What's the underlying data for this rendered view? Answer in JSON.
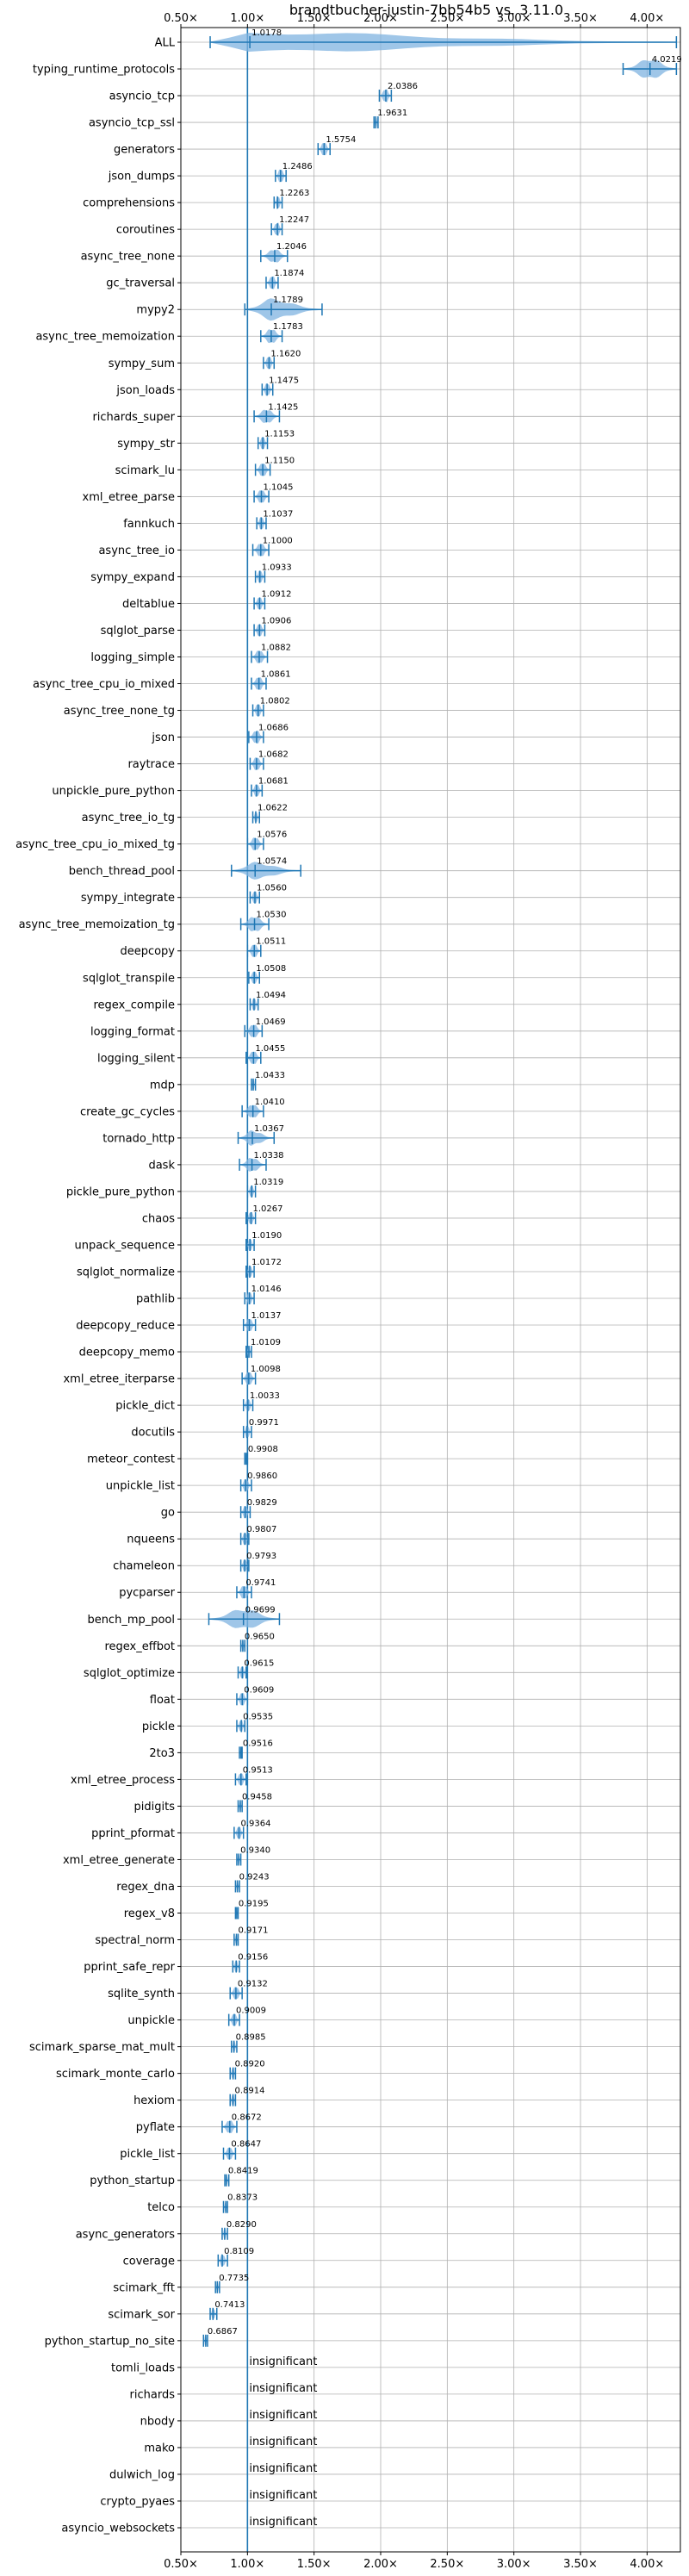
{
  "chart_data": {
    "type": "violin",
    "title": "brandtbucher-justin-7bb54b5 vs. 3.11.0",
    "xlim": [
      0.5,
      4.25
    ],
    "xticks": [
      "0.50×",
      "1.00×",
      "1.50×",
      "2.00×",
      "2.50×",
      "3.00×",
      "3.50×",
      "4.00×"
    ],
    "xtick_values": [
      0.5,
      1.0,
      1.5,
      2.0,
      2.5,
      3.0,
      3.5,
      4.0
    ],
    "reference_line": 1.0,
    "grid": true,
    "colors": {
      "violin": "#7fb3e0",
      "line": "#1f77b4",
      "grid": "#b0b0b0"
    },
    "insignificant_label": "insignificant",
    "benchmarks": [
      {
        "name": "ALL",
        "value": 1.0178,
        "label": "1.0178",
        "lo": 0.72,
        "hi": 4.22,
        "w": 1.0
      },
      {
        "name": "typing_runtime_protocols",
        "value": 4.0219,
        "label": "4.0219",
        "lo": 3.82,
        "hi": 4.22,
        "w": 1.0
      },
      {
        "name": "asyncio_tcp",
        "value": 2.0386,
        "label": "2.0386",
        "lo": 1.99,
        "hi": 2.08,
        "w": 0.55
      },
      {
        "name": "asyncio_tcp_ssl",
        "value": 1.9631,
        "label": "1.9631",
        "lo": 1.95,
        "hi": 1.98,
        "w": 0.45
      },
      {
        "name": "generators",
        "value": 1.5754,
        "label": "1.5754",
        "lo": 1.53,
        "hi": 1.62,
        "w": 0.55
      },
      {
        "name": "json_dumps",
        "value": 1.2486,
        "label": "1.2486",
        "lo": 1.21,
        "hi": 1.29,
        "w": 0.55
      },
      {
        "name": "comprehensions",
        "value": 1.2263,
        "label": "1.2263",
        "lo": 1.2,
        "hi": 1.26,
        "w": 0.55
      },
      {
        "name": "coroutines",
        "value": 1.2247,
        "label": "1.2247",
        "lo": 1.18,
        "hi": 1.26,
        "w": 0.55
      },
      {
        "name": "async_tree_none",
        "value": 1.2046,
        "label": "1.2046",
        "lo": 1.1,
        "hi": 1.3,
        "w": 0.55
      },
      {
        "name": "gc_traversal",
        "value": 1.1874,
        "label": "1.1874",
        "lo": 1.14,
        "hi": 1.23,
        "w": 0.55
      },
      {
        "name": "mypy2",
        "value": 1.1789,
        "label": "1.1789",
        "lo": 0.98,
        "hi": 1.56,
        "w": 1.0
      },
      {
        "name": "async_tree_memoization",
        "value": 1.1783,
        "label": "1.1783",
        "lo": 1.1,
        "hi": 1.26,
        "w": 0.65
      },
      {
        "name": "sympy_sum",
        "value": 1.162,
        "label": "1.1620",
        "lo": 1.12,
        "hi": 1.2,
        "w": 0.5
      },
      {
        "name": "json_loads",
        "value": 1.1475,
        "label": "1.1475",
        "lo": 1.11,
        "hi": 1.19,
        "w": 0.5
      },
      {
        "name": "richards_super",
        "value": 1.1425,
        "label": "1.1425",
        "lo": 1.05,
        "hi": 1.24,
        "w": 0.6
      },
      {
        "name": "sympy_str",
        "value": 1.1153,
        "label": "1.1153",
        "lo": 1.08,
        "hi": 1.15,
        "w": 0.5
      },
      {
        "name": "scimark_lu",
        "value": 1.115,
        "label": "1.1150",
        "lo": 1.06,
        "hi": 1.17,
        "w": 0.55
      },
      {
        "name": "xml_etree_parse",
        "value": 1.1045,
        "label": "1.1045",
        "lo": 1.05,
        "hi": 1.16,
        "w": 0.55
      },
      {
        "name": "fannkuch",
        "value": 1.1037,
        "label": "1.1037",
        "lo": 1.07,
        "hi": 1.14,
        "w": 0.5
      },
      {
        "name": "async_tree_io",
        "value": 1.1,
        "label": "1.1000",
        "lo": 1.04,
        "hi": 1.16,
        "w": 0.55
      },
      {
        "name": "sympy_expand",
        "value": 1.0933,
        "label": "1.0933",
        "lo": 1.06,
        "hi": 1.13,
        "w": 0.5
      },
      {
        "name": "deltablue",
        "value": 1.0912,
        "label": "1.0912",
        "lo": 1.05,
        "hi": 1.13,
        "w": 0.5
      },
      {
        "name": "sqlglot_parse",
        "value": 1.0906,
        "label": "1.0906",
        "lo": 1.05,
        "hi": 1.13,
        "w": 0.5
      },
      {
        "name": "logging_simple",
        "value": 1.0882,
        "label": "1.0882",
        "lo": 1.03,
        "hi": 1.15,
        "w": 0.55
      },
      {
        "name": "async_tree_cpu_io_mixed",
        "value": 1.0861,
        "label": "1.0861",
        "lo": 1.03,
        "hi": 1.14,
        "w": 0.55
      },
      {
        "name": "async_tree_none_tg",
        "value": 1.0802,
        "label": "1.0802",
        "lo": 1.04,
        "hi": 1.12,
        "w": 0.5
      },
      {
        "name": "json",
        "value": 1.0686,
        "label": "1.0686",
        "lo": 1.01,
        "hi": 1.12,
        "w": 0.55
      },
      {
        "name": "raytrace",
        "value": 1.0682,
        "label": "1.0682",
        "lo": 1.02,
        "hi": 1.12,
        "w": 0.55
      },
      {
        "name": "unpickle_pure_python",
        "value": 1.0681,
        "label": "1.0681",
        "lo": 1.03,
        "hi": 1.11,
        "w": 0.5
      },
      {
        "name": "async_tree_io_tg",
        "value": 1.0622,
        "label": "1.0622",
        "lo": 1.04,
        "hi": 1.09,
        "w": 0.4
      },
      {
        "name": "async_tree_cpu_io_mixed_tg",
        "value": 1.0576,
        "label": "1.0576",
        "lo": 1.0,
        "hi": 1.12,
        "w": 0.55
      },
      {
        "name": "bench_thread_pool",
        "value": 1.0574,
        "label": "1.0574",
        "lo": 0.88,
        "hi": 1.4,
        "w": 0.7
      },
      {
        "name": "sympy_integrate",
        "value": 1.056,
        "label": "1.0560",
        "lo": 1.02,
        "hi": 1.09,
        "w": 0.5
      },
      {
        "name": "async_tree_memoization_tg",
        "value": 1.053,
        "label": "1.0530",
        "lo": 0.95,
        "hi": 1.16,
        "w": 0.7
      },
      {
        "name": "deepcopy",
        "value": 1.0511,
        "label": "1.0511",
        "lo": 1.0,
        "hi": 1.1,
        "w": 0.55
      },
      {
        "name": "sqlglot_transpile",
        "value": 1.0508,
        "label": "1.0508",
        "lo": 1.01,
        "hi": 1.09,
        "w": 0.5
      },
      {
        "name": "regex_compile",
        "value": 1.0494,
        "label": "1.0494",
        "lo": 1.02,
        "hi": 1.08,
        "w": 0.5
      },
      {
        "name": "logging_format",
        "value": 1.0469,
        "label": "1.0469",
        "lo": 0.98,
        "hi": 1.11,
        "w": 0.55
      },
      {
        "name": "logging_silent",
        "value": 1.0455,
        "label": "1.0455",
        "lo": 0.99,
        "hi": 1.1,
        "w": 0.55
      },
      {
        "name": "mdp",
        "value": 1.0433,
        "label": "1.0433",
        "lo": 1.03,
        "hi": 1.06,
        "w": 0.4
      },
      {
        "name": "create_gc_cycles",
        "value": 1.041,
        "label": "1.0410",
        "lo": 0.96,
        "hi": 1.12,
        "w": 0.55
      },
      {
        "name": "tornado_http",
        "value": 1.0367,
        "label": "1.0367",
        "lo": 0.93,
        "hi": 1.2,
        "w": 0.6
      },
      {
        "name": "dask",
        "value": 1.0338,
        "label": "1.0338",
        "lo": 0.94,
        "hi": 1.14,
        "w": 0.6
      },
      {
        "name": "pickle_pure_python",
        "value": 1.0319,
        "label": "1.0319",
        "lo": 1.0,
        "hi": 1.06,
        "w": 0.45
      },
      {
        "name": "chaos",
        "value": 1.0267,
        "label": "1.0267",
        "lo": 0.99,
        "hi": 1.06,
        "w": 0.5
      },
      {
        "name": "unpack_sequence",
        "value": 1.019,
        "label": "1.0190",
        "lo": 0.99,
        "hi": 1.05,
        "w": 0.5
      },
      {
        "name": "sqlglot_normalize",
        "value": 1.0172,
        "label": "1.0172",
        "lo": 0.99,
        "hi": 1.05,
        "w": 0.5
      },
      {
        "name": "pathlib",
        "value": 1.0146,
        "label": "1.0146",
        "lo": 0.98,
        "hi": 1.05,
        "w": 0.5
      },
      {
        "name": "deepcopy_reduce",
        "value": 1.0137,
        "label": "1.0137",
        "lo": 0.97,
        "hi": 1.06,
        "w": 0.55
      },
      {
        "name": "deepcopy_memo",
        "value": 1.0109,
        "label": "1.0109",
        "lo": 0.99,
        "hi": 1.03,
        "w": 0.4
      },
      {
        "name": "xml_etree_iterparse",
        "value": 1.0098,
        "label": "1.0098",
        "lo": 0.96,
        "hi": 1.06,
        "w": 0.55
      },
      {
        "name": "pickle_dict",
        "value": 1.0033,
        "label": "1.0033",
        "lo": 0.97,
        "hi": 1.04,
        "w": 0.5
      },
      {
        "name": "docutils",
        "value": 0.9971,
        "label": "0.9971",
        "lo": 0.97,
        "hi": 1.03,
        "w": 0.5
      },
      {
        "name": "meteor_contest",
        "value": 0.9908,
        "label": "0.9908",
        "lo": 0.98,
        "hi": 1.0,
        "w": 0.4
      },
      {
        "name": "unpickle_list",
        "value": 0.986,
        "label": "0.9860",
        "lo": 0.95,
        "hi": 1.03,
        "w": 0.5
      },
      {
        "name": "go",
        "value": 0.9829,
        "label": "0.9829",
        "lo": 0.95,
        "hi": 1.02,
        "w": 0.5
      },
      {
        "name": "nqueens",
        "value": 0.9807,
        "label": "0.9807",
        "lo": 0.95,
        "hi": 1.01,
        "w": 0.5
      },
      {
        "name": "chameleon",
        "value": 0.9793,
        "label": "0.9793",
        "lo": 0.95,
        "hi": 1.01,
        "w": 0.5
      },
      {
        "name": "pycparser",
        "value": 0.9741,
        "label": "0.9741",
        "lo": 0.92,
        "hi": 1.03,
        "w": 0.55
      },
      {
        "name": "bench_mp_pool",
        "value": 0.9699,
        "label": "0.9699",
        "lo": 0.71,
        "hi": 1.24,
        "w": 1.0
      },
      {
        "name": "regex_effbot",
        "value": 0.965,
        "label": "0.9650",
        "lo": 0.95,
        "hi": 0.98,
        "w": 0.4
      },
      {
        "name": "sqlglot_optimize",
        "value": 0.9615,
        "label": "0.9615",
        "lo": 0.93,
        "hi": 0.99,
        "w": 0.5
      },
      {
        "name": "float",
        "value": 0.9609,
        "label": "0.9609",
        "lo": 0.92,
        "hi": 1.0,
        "w": 0.55
      },
      {
        "name": "pickle",
        "value": 0.9535,
        "label": "0.9535",
        "lo": 0.92,
        "hi": 0.98,
        "w": 0.5
      },
      {
        "name": "2to3",
        "value": 0.9516,
        "label": "0.9516",
        "lo": 0.94,
        "hi": 0.96,
        "w": 0.35
      },
      {
        "name": "xml_etree_process",
        "value": 0.9513,
        "label": "0.9513",
        "lo": 0.91,
        "hi": 0.99,
        "w": 0.5
      },
      {
        "name": "pidigits",
        "value": 0.9458,
        "label": "0.9458",
        "lo": 0.93,
        "hi": 0.96,
        "w": 0.35
      },
      {
        "name": "pprint_pformat",
        "value": 0.9364,
        "label": "0.9364",
        "lo": 0.9,
        "hi": 0.97,
        "w": 0.5
      },
      {
        "name": "xml_etree_generate",
        "value": 0.934,
        "label": "0.9340",
        "lo": 0.92,
        "hi": 0.95,
        "w": 0.4
      },
      {
        "name": "regex_dna",
        "value": 0.9243,
        "label": "0.9243",
        "lo": 0.91,
        "hi": 0.94,
        "w": 0.35
      },
      {
        "name": "regex_v8",
        "value": 0.9195,
        "label": "0.9195",
        "lo": 0.91,
        "hi": 0.93,
        "w": 0.35
      },
      {
        "name": "spectral_norm",
        "value": 0.9171,
        "label": "0.9171",
        "lo": 0.9,
        "hi": 0.93,
        "w": 0.35
      },
      {
        "name": "pprint_safe_repr",
        "value": 0.9156,
        "label": "0.9156",
        "lo": 0.89,
        "hi": 0.94,
        "w": 0.45
      },
      {
        "name": "sqlite_synth",
        "value": 0.9132,
        "label": "0.9132",
        "lo": 0.87,
        "hi": 0.96,
        "w": 0.5
      },
      {
        "name": "unpickle",
        "value": 0.9009,
        "label": "0.9009",
        "lo": 0.86,
        "hi": 0.94,
        "w": 0.5
      },
      {
        "name": "scimark_sparse_mat_mult",
        "value": 0.8985,
        "label": "0.8985",
        "lo": 0.88,
        "hi": 0.92,
        "w": 0.4
      },
      {
        "name": "scimark_monte_carlo",
        "value": 0.892,
        "label": "0.8920",
        "lo": 0.87,
        "hi": 0.91,
        "w": 0.4
      },
      {
        "name": "hexiom",
        "value": 0.8914,
        "label": "0.8914",
        "lo": 0.87,
        "hi": 0.91,
        "w": 0.4
      },
      {
        "name": "pyflate",
        "value": 0.8672,
        "label": "0.8672",
        "lo": 0.81,
        "hi": 0.92,
        "w": 0.55
      },
      {
        "name": "pickle_list",
        "value": 0.8647,
        "label": "0.8647",
        "lo": 0.82,
        "hi": 0.91,
        "w": 0.5
      },
      {
        "name": "python_startup",
        "value": 0.8419,
        "label": "0.8419",
        "lo": 0.83,
        "hi": 0.86,
        "w": 0.35
      },
      {
        "name": "telco",
        "value": 0.8373,
        "label": "0.8373",
        "lo": 0.82,
        "hi": 0.85,
        "w": 0.35
      },
      {
        "name": "async_generators",
        "value": 0.829,
        "label": "0.8290",
        "lo": 0.81,
        "hi": 0.85,
        "w": 0.4
      },
      {
        "name": "coverage",
        "value": 0.8109,
        "label": "0.8109",
        "lo": 0.78,
        "hi": 0.85,
        "w": 0.5
      },
      {
        "name": "scimark_fft",
        "value": 0.7735,
        "label": "0.7735",
        "lo": 0.76,
        "hi": 0.79,
        "w": 0.35
      },
      {
        "name": "scimark_sor",
        "value": 0.7413,
        "label": "0.7413",
        "lo": 0.72,
        "hi": 0.77,
        "w": 0.45
      },
      {
        "name": "python_startup_no_site",
        "value": 0.6867,
        "label": "0.6867",
        "lo": 0.67,
        "hi": 0.7,
        "w": 0.4
      },
      {
        "name": "tomli_loads",
        "value": null,
        "label": "insignificant"
      },
      {
        "name": "richards",
        "value": null,
        "label": "insignificant"
      },
      {
        "name": "nbody",
        "value": null,
        "label": "insignificant"
      },
      {
        "name": "mako",
        "value": null,
        "label": "insignificant"
      },
      {
        "name": "dulwich_log",
        "value": null,
        "label": "insignificant"
      },
      {
        "name": "crypto_pyaes",
        "value": null,
        "label": "insignificant"
      },
      {
        "name": "asyncio_websockets",
        "value": null,
        "label": "insignificant"
      }
    ]
  }
}
